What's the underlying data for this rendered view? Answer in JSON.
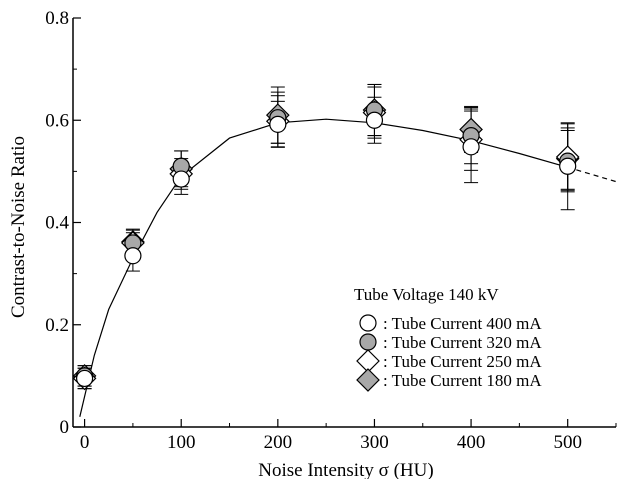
{
  "chart_data": {
    "type": "scatter",
    "xlabel": "Noise Intensity  σ  (HU)",
    "ylabel": "Contrast-to-Noise Ratio",
    "xlim": [
      -12,
      550
    ],
    "ylim": [
      0,
      0.8
    ],
    "x_ticks": [
      0,
      100,
      200,
      300,
      400,
      500
    ],
    "x_tick_labels": [
      "0",
      "100",
      "200",
      "300",
      "400",
      "500"
    ],
    "y_ticks": [
      0,
      0.2,
      0.4,
      0.6,
      0.8
    ],
    "y_tick_labels": [
      "0",
      "0.2",
      "0.4",
      "0.6",
      "0.8"
    ],
    "grid": false,
    "legend": {
      "title": "Tube Voltage 140 kV",
      "placement": "bottom-right"
    },
    "series": [
      {
        "name": ": Tube Current 400 mA",
        "marker": "circle-open",
        "x": [
          0,
          50,
          100,
          200,
          300,
          400,
          500
        ],
        "y": [
          0.095,
          0.335,
          0.485,
          0.592,
          0.6,
          0.548,
          0.51
        ],
        "err": [
          0.02,
          0.03,
          0.03,
          0.045,
          0.045,
          0.07,
          0.085
        ]
      },
      {
        "name": ": Tube Current 320 mA",
        "marker": "circle-filled",
        "x": [
          0,
          50,
          100,
          200,
          300,
          400,
          500
        ],
        "y": [
          0.1,
          0.36,
          0.51,
          0.605,
          0.62,
          0.57,
          0.52
        ],
        "err": [
          0.02,
          0.025,
          0.03,
          0.05,
          0.05,
          0.055,
          0.06
        ]
      },
      {
        "name": ": Tube Current 250 mA",
        "marker": "diamond-open",
        "x": [
          0,
          50,
          100,
          200,
          300,
          400,
          500
        ],
        "y": [
          0.095,
          0.36,
          0.495,
          0.598,
          0.615,
          0.562,
          0.528
        ],
        "err": [
          0.02,
          0.02,
          0.03,
          0.05,
          0.05,
          0.06,
          0.065
        ]
      },
      {
        "name": ": Tube Current 180 mA",
        "marker": "diamond-filled",
        "x": [
          0,
          50,
          100,
          200,
          300,
          400,
          500
        ],
        "y": [
          0.1,
          0.362,
          0.505,
          0.61,
          0.62,
          0.582,
          0.525
        ],
        "err": [
          0.02,
          0.025,
          0.035,
          0.055,
          0.05,
          0.045,
          0.06
        ]
      }
    ],
    "fit_curve": {
      "x": [
        -5,
        10,
        25,
        50,
        75,
        100,
        150,
        200,
        250,
        300,
        350,
        400,
        450,
        500,
        550
      ],
      "y": [
        0.02,
        0.14,
        0.23,
        0.33,
        0.42,
        0.49,
        0.565,
        0.595,
        0.602,
        0.595,
        0.58,
        0.56,
        0.535,
        0.508,
        0.48
      ],
      "dashed_from_x": 500
    }
  }
}
